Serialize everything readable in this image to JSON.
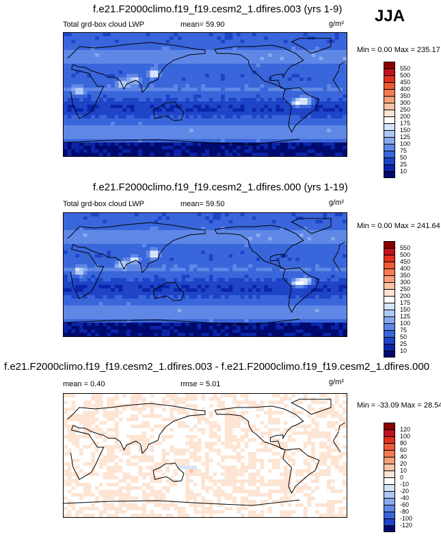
{
  "season_label": "JJA",
  "panels": [
    {
      "title": "f.e21.F2000climo.f19_f19.cesm2_1.dfires.003 (yrs 1-9)",
      "left_label": "Total grd-box cloud LWP",
      "stat1": "mean=  59.90",
      "stat2": "",
      "units": "g/m²",
      "minmax": "Min =   0.00 Max = 235.17",
      "colorbar_labels": [
        "550",
        "500",
        "450",
        "400",
        "350",
        "300",
        "250",
        "200",
        "175",
        "150",
        "125",
        "100",
        "75",
        "50",
        "25",
        "10"
      ],
      "colorbar_colors": [
        "#8b0000",
        "#c1121f",
        "#e0301e",
        "#ef5a34",
        "#f57c52",
        "#f9a07a",
        "#fbc4a6",
        "#fde4d3",
        "#ffffff",
        "#d6e4fb",
        "#aec8f5",
        "#87a9ee",
        "#5f88e6",
        "#3a66db",
        "#1e44c8",
        "#0b24a8",
        "#000a6e"
      ],
      "field": "lwp_a"
    },
    {
      "title": "f.e21.F2000climo.f19_f19.cesm2_1.dfires.000 (yrs 1-19)",
      "left_label": "Total grd-box cloud LWP",
      "stat1": "mean=  59.50",
      "stat2": "",
      "units": "g/m²",
      "minmax": "Min =   0.00 Max = 241.64",
      "colorbar_labels": [
        "550",
        "500",
        "450",
        "400",
        "350",
        "300",
        "250",
        "200",
        "175",
        "150",
        "125",
        "100",
        "75",
        "50",
        "25",
        "10"
      ],
      "colorbar_colors": [
        "#8b0000",
        "#c1121f",
        "#e0301e",
        "#ef5a34",
        "#f57c52",
        "#f9a07a",
        "#fbc4a6",
        "#fde4d3",
        "#ffffff",
        "#d6e4fb",
        "#aec8f5",
        "#87a9ee",
        "#5f88e6",
        "#3a66db",
        "#1e44c8",
        "#0b24a8",
        "#000a6e"
      ],
      "field": "lwp_b"
    },
    {
      "title": "f.e21.F2000climo.f19_f19.cesm2_1.dfires.003 - f.e21.F2000climo.f19_f19.cesm2_1.dfires.000",
      "left_label": "mean =   0.40",
      "stat1": "",
      "stat2": "rmse =   5.01",
      "units": "g/m²",
      "minmax": "Min = -33.09 Max =  28.54",
      "colorbar_labels": [
        "120",
        "100",
        "80",
        "60",
        "40",
        "20",
        "10",
        "0",
        "-10",
        "-20",
        "-40",
        "-60",
        "-80",
        "-100",
        "-120"
      ],
      "colorbar_colors": [
        "#8b0000",
        "#c1121f",
        "#e0301e",
        "#ef5a34",
        "#f57c52",
        "#f9a07a",
        "#fbc4a6",
        "#fde4d3",
        "#ffffff",
        "#d6e4fb",
        "#aec8f5",
        "#87a9ee",
        "#5f88e6",
        "#3a66db",
        "#1e44c8",
        "#000a6e"
      ],
      "field": "diff"
    }
  ],
  "chart_data": {
    "type": "heatmap",
    "projection": "cylindrical-equidistant, global, centered on 180",
    "variable": "Total grd-box cloud LWP",
    "units": "g/m2",
    "season": "JJA",
    "panels": [
      {
        "case": "f.e21.F2000climo.f19_f19.cesm2_1.dfires.003 (yrs 1-9)",
        "mean": 59.9,
        "min": 0.0,
        "max": 235.17,
        "levels": [
          10,
          25,
          50,
          75,
          100,
          125,
          150,
          175,
          200,
          250,
          300,
          350,
          400,
          450,
          500,
          550
        ]
      },
      {
        "case": "f.e21.F2000climo.f19_f19.cesm2_1.dfires.000 (yrs 1-19)",
        "mean": 59.5,
        "min": 0.0,
        "max": 241.64,
        "levels": [
          10,
          25,
          50,
          75,
          100,
          125,
          150,
          175,
          200,
          250,
          300,
          350,
          400,
          450,
          500,
          550
        ]
      },
      {
        "case": "difference (003 - 000)",
        "mean": 0.4,
        "rmse": 5.01,
        "min": -33.09,
        "max": 28.54,
        "levels": [
          -120,
          -100,
          -80,
          -60,
          -40,
          -20,
          -10,
          0,
          10,
          20,
          40,
          60,
          80,
          100,
          120
        ]
      }
    ]
  }
}
